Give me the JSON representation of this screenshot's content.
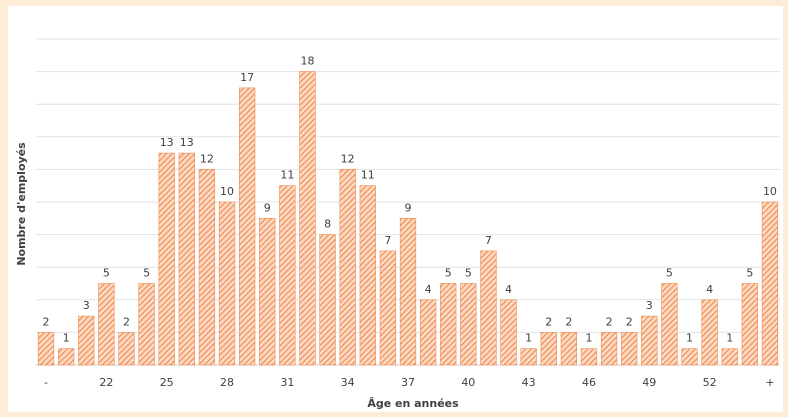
{
  "chart_data": {
    "type": "bar",
    "xlabel": "Âge en années",
    "ylabel": "Nombre d'employés",
    "ylim": [
      0,
      20
    ],
    "grid": true,
    "bar_color": "#f4a06b",
    "bar_fill": "diagonal-hatch",
    "tick_labels": [
      "-",
      "22",
      "25",
      "28",
      "31",
      "34",
      "37",
      "40",
      "43",
      "46",
      "49",
      "52",
      "+"
    ],
    "values": [
      2,
      1,
      3,
      5,
      2,
      5,
      13,
      13,
      12,
      10,
      17,
      9,
      11,
      18,
      8,
      12,
      11,
      7,
      9,
      4,
      5,
      5,
      7,
      4,
      1,
      2,
      2,
      1,
      2,
      2,
      3,
      5,
      1,
      4,
      1,
      5,
      10
    ]
  }
}
